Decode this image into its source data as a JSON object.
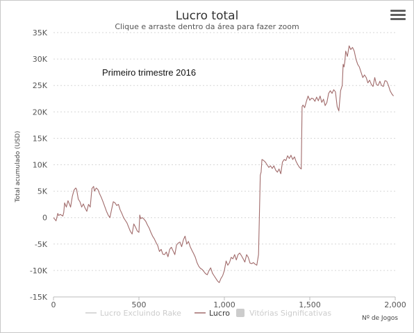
{
  "chart_data": {
    "type": "line",
    "title": "Lucro total",
    "subtitle": "Clique e arraste dentro da área para fazer zoom",
    "ylabel": "Total acumulado (USD)",
    "xlabel": "Nº de Jogos",
    "annotation": "Primeiro trimestre 2016",
    "xlim": [
      0,
      2000
    ],
    "ylim": [
      -15000,
      35000
    ],
    "x_ticks": [
      0,
      500,
      1000,
      1500,
      2000
    ],
    "x_tick_labels": [
      "0",
      "500",
      "1,000",
      "1,500",
      "2,000"
    ],
    "y_ticks": [
      -15000,
      -10000,
      -5000,
      0,
      5000,
      10000,
      15000,
      20000,
      25000,
      30000,
      35000
    ],
    "y_tick_labels": [
      "-15K",
      "-10K",
      "-5K",
      "0",
      "5K",
      "10K",
      "15K",
      "20K",
      "25K",
      "30K",
      "35K"
    ],
    "grid": true,
    "legend": "bottom-center",
    "legend_items": [
      {
        "name": "Lucro Excluindo Rake",
        "color": "#cccccc",
        "symbol": "line",
        "hidden": true
      },
      {
        "name": "Lucro",
        "color": "#a06a6a",
        "symbol": "line",
        "hidden": false
      },
      {
        "name": "Vitórias Significativas",
        "color": "#cccccc",
        "symbol": "square",
        "hidden": true
      }
    ],
    "series": [
      {
        "name": "Lucro",
        "color": "#a06a6a",
        "x": [
          0,
          15,
          25,
          30,
          40,
          55,
          60,
          65,
          75,
          85,
          95,
          100,
          110,
          120,
          130,
          135,
          145,
          155,
          165,
          175,
          185,
          195,
          205,
          215,
          225,
          235,
          240,
          250,
          260,
          270,
          280,
          290,
          300,
          310,
          320,
          330,
          340,
          350,
          360,
          370,
          380,
          390,
          400,
          410,
          420,
          430,
          440,
          450,
          460,
          470,
          480,
          490,
          500,
          505,
          510,
          520,
          530,
          540,
          550,
          560,
          570,
          580,
          590,
          600,
          610,
          620,
          630,
          640,
          650,
          660,
          670,
          680,
          690,
          700,
          710,
          720,
          730,
          740,
          750,
          760,
          770,
          780,
          790,
          800,
          810,
          820,
          830,
          840,
          850,
          860,
          870,
          880,
          890,
          900,
          910,
          920,
          930,
          940,
          950,
          960,
          970,
          980,
          990,
          1000,
          1010,
          1020,
          1030,
          1040,
          1050,
          1060,
          1070,
          1080,
          1090,
          1100,
          1110,
          1120,
          1130,
          1140,
          1150,
          1160,
          1170,
          1180,
          1190,
          1200,
          1210,
          1212,
          1215,
          1220,
          1230,
          1240,
          1250,
          1260,
          1270,
          1280,
          1290,
          1300,
          1310,
          1320,
          1330,
          1340,
          1350,
          1360,
          1370,
          1380,
          1390,
          1400,
          1410,
          1420,
          1430,
          1440,
          1450,
          1455,
          1460,
          1470,
          1480,
          1490,
          1500,
          1510,
          1520,
          1530,
          1540,
          1550,
          1560,
          1570,
          1580,
          1590,
          1600,
          1610,
          1620,
          1630,
          1640,
          1650,
          1660,
          1670,
          1680,
          1690,
          1695,
          1700,
          1705,
          1710,
          1720,
          1730,
          1740,
          1750,
          1760,
          1770,
          1780,
          1790,
          1800,
          1810,
          1820,
          1830,
          1840,
          1850,
          1860,
          1870,
          1880,
          1890,
          1900,
          1910,
          1920,
          1930,
          1940,
          1950,
          1960,
          1970,
          1980,
          1990
        ],
        "values": [
          0,
          -600,
          800,
          400,
          600,
          300,
          1000,
          2800,
          2000,
          3200,
          2400,
          2000,
          4000,
          5200,
          5600,
          5400,
          3500,
          3000,
          2000,
          2600,
          1800,
          1200,
          2500,
          2000,
          5500,
          5900,
          5000,
          5600,
          5300,
          4500,
          3800,
          3000,
          2100,
          1200,
          500,
          0,
          1500,
          3000,
          2800,
          2300,
          2500,
          1500,
          800,
          0,
          -500,
          -1000,
          -1800,
          -2600,
          -3100,
          -1200,
          -1800,
          -2500,
          -2800,
          500,
          -200,
          0,
          -300,
          -700,
          -1400,
          -2000,
          -2800,
          -3500,
          -4000,
          -4700,
          -5300,
          -6400,
          -6000,
          -6900,
          -7000,
          -6500,
          -7400,
          -6000,
          -5600,
          -6300,
          -7000,
          -5200,
          -4800,
          -4600,
          -5500,
          -4200,
          -3500,
          -5000,
          -4500,
          -5500,
          -6200,
          -6800,
          -7500,
          -8500,
          -9200,
          -9600,
          -9800,
          -10200,
          -10600,
          -10800,
          -10000,
          -9500,
          -10500,
          -11000,
          -11500,
          -12000,
          -12300,
          -11500,
          -11000,
          -10000,
          -8200,
          -9000,
          -8500,
          -7500,
          -7800,
          -7000,
          -8000,
          -7000,
          -6700,
          -7200,
          -7800,
          -8400,
          -7000,
          -7500,
          -8600,
          -8700,
          -8500,
          -8800,
          -9000,
          -7000,
          8000,
          8300,
          8600,
          11000,
          10800,
          10500,
          10000,
          9500,
          9800,
          9300,
          9800,
          9000,
          8600,
          9200,
          8300,
          10500,
          11000,
          10800,
          11700,
          11200,
          11800,
          11000,
          11500,
          10600,
          10000,
          9500,
          9200,
          21000,
          21300,
          20800,
          22000,
          23000,
          22200,
          22600,
          22500,
          22000,
          22800,
          22100,
          23000,
          21800,
          22400,
          21200,
          21800,
          23500,
          24000,
          23500,
          24200,
          23800,
          21000,
          20200,
          24000,
          25000,
          29000,
          28500,
          29500,
          31500,
          30500,
          32500,
          31800,
          32200,
          31500,
          30000,
          29000,
          28500,
          27500,
          26500,
          27000,
          26500,
          25500,
          26000,
          25200,
          24800,
          26500,
          25200,
          25000,
          25800,
          25000,
          24800,
          25900,
          25800,
          25000,
          24000,
          23400,
          23000
        ]
      }
    ]
  },
  "ui": {
    "menu_icon": "hamburger-menu-icon"
  }
}
